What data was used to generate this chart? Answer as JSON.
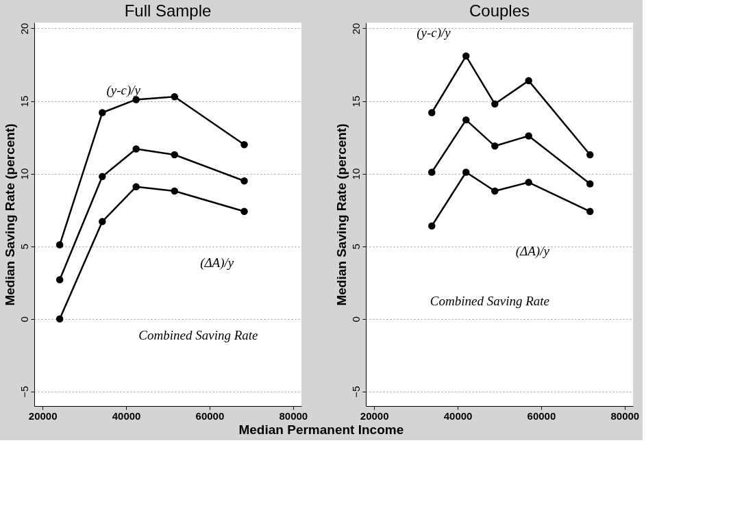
{
  "chart_data": [
    {
      "type": "line",
      "title": "Full Sample",
      "ylabel": "Median Saving Rate (percent)",
      "xlabel": "Median Permanent Income",
      "x": [
        24100,
        34300,
        42400,
        51600,
        68300
      ],
      "series": [
        {
          "color": "#000000",
          "values": [
            5.1,
            14.2,
            15.1,
            15.3,
            12.0
          ]
        },
        {
          "color": "#000000",
          "values": [
            2.7,
            9.8,
            11.7,
            11.3,
            9.5
          ]
        },
        {
          "color": "#000000",
          "values": [
            0.0,
            6.7,
            9.1,
            8.8,
            7.4
          ]
        }
      ],
      "xlim": [
        18000,
        82000
      ],
      "xticks": [
        20000,
        40000,
        60000,
        80000
      ],
      "ylim": [
        -6,
        20.4
      ],
      "yticks": [
        -5,
        0,
        5,
        10,
        15,
        20
      ],
      "grid": "y",
      "marker": "circle",
      "line_style": "solid",
      "legend": false,
      "annotations": [
        "(y-c)/y",
        "Combined Saving Rate",
        "(ΔA)/y"
      ]
    },
    {
      "type": "line",
      "title": "Couples",
      "ylabel": "Median Saving Rate (percent)",
      "x": [
        33800,
        42000,
        48900,
        57000,
        71700
      ],
      "series": [
        {
          "color": "#000000",
          "values": [
            14.2,
            18.1,
            14.8,
            16.4,
            11.3
          ]
        },
        {
          "color": "#000000",
          "values": [
            10.1,
            13.7,
            11.9,
            12.6,
            9.3
          ]
        },
        {
          "color": "#000000",
          "values": [
            6.4,
            10.1,
            8.8,
            9.4,
            7.4
          ]
        }
      ],
      "xlim": [
        18000,
        82000
      ],
      "xticks": [
        20000,
        40000,
        60000,
        80000
      ],
      "ylim": [
        -6,
        20.4
      ],
      "yticks": [
        -5,
        0,
        5,
        10,
        15,
        20
      ],
      "grid": "y",
      "marker": "circle",
      "line_style": "solid",
      "legend": false,
      "annotations": [
        "(y-c)/y",
        "Combined Saving Rate",
        "(ΔA)/y"
      ]
    }
  ]
}
